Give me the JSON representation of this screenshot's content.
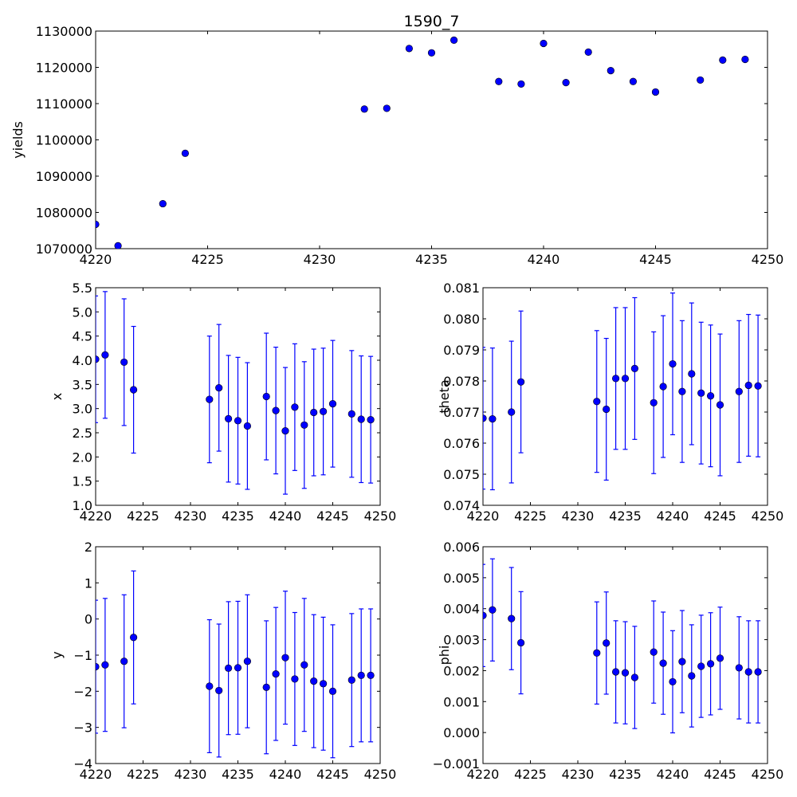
{
  "chart_data": [
    {
      "id": "yields",
      "type": "scatter",
      "title": "1590_7",
      "xlabel": "",
      "ylabel": "yields",
      "xlim": [
        4220,
        4250
      ],
      "ylim": [
        1070000,
        1130000
      ],
      "xticks": [
        "4220",
        "4225",
        "4230",
        "4235",
        "4240",
        "4245",
        "4250"
      ],
      "yticks": [
        "1070000",
        "1080000",
        "1090000",
        "1100000",
        "1110000",
        "1120000",
        "1130000"
      ],
      "marker_color": "#0000ff",
      "x": [
        4220,
        4221,
        4223,
        4224,
        4232,
        4233,
        4234,
        4235,
        4236,
        4238,
        4239,
        4240,
        4241,
        4242,
        4243,
        4244,
        4245,
        4247,
        4248,
        4249
      ],
      "y": [
        1076700,
        1070800,
        1082400,
        1096300,
        1108500,
        1108700,
        1125200,
        1124000,
        1127500,
        1116100,
        1115400,
        1126600,
        1115800,
        1124200,
        1119100,
        1116100,
        1113200,
        1116500,
        1122000,
        1122200
      ]
    },
    {
      "id": "x",
      "type": "scatter",
      "title": "",
      "xlabel": "",
      "ylabel": "x",
      "xlim": [
        4220,
        4250
      ],
      "ylim": [
        1.0,
        5.5
      ],
      "xticks": [
        "4220",
        "4225",
        "4230",
        "4235",
        "4240",
        "4245",
        "4250"
      ],
      "yticks": [
        "1.0",
        "1.5",
        "2.0",
        "2.5",
        "3.0",
        "3.5",
        "4.0",
        "4.5",
        "5.0",
        "5.5"
      ],
      "marker_color": "#0000ff",
      "x": [
        4220,
        4221,
        4223,
        4224,
        4232,
        4233,
        4234,
        4235,
        4236,
        4238,
        4239,
        4240,
        4241,
        4242,
        4243,
        4244,
        4245,
        4247,
        4248,
        4249
      ],
      "y": [
        4.02,
        4.11,
        3.96,
        3.39,
        3.19,
        3.43,
        2.79,
        2.75,
        2.64,
        3.25,
        2.96,
        2.54,
        3.03,
        2.66,
        2.92,
        2.94,
        3.1,
        2.89,
        2.78,
        2.77
      ],
      "yerr": [
        1.31,
        1.31,
        1.31,
        1.31,
        1.31,
        1.31,
        1.31,
        1.31,
        1.31,
        1.31,
        1.31,
        1.31,
        1.31,
        1.31,
        1.31,
        1.31,
        1.31,
        1.31,
        1.31,
        1.31
      ]
    },
    {
      "id": "theta",
      "type": "scatter",
      "title": "",
      "xlabel": "",
      "ylabel": "theta",
      "xlim": [
        4220,
        4250
      ],
      "ylim": [
        0.074,
        0.081
      ],
      "xticks": [
        "4220",
        "4225",
        "4230",
        "4235",
        "4240",
        "4245",
        "4250"
      ],
      "yticks": [
        "0.074",
        "0.075",
        "0.076",
        "0.077",
        "0.078",
        "0.079",
        "0.080",
        "0.081"
      ],
      "marker_color": "#0000ff",
      "x": [
        4220,
        4221,
        4223,
        4224,
        4232,
        4233,
        4234,
        4235,
        4236,
        4238,
        4239,
        4240,
        4241,
        4242,
        4243,
        4244,
        4245,
        4247,
        4248,
        4249
      ],
      "y": [
        0.0768,
        0.07678,
        0.077,
        0.07797,
        0.07734,
        0.07709,
        0.07808,
        0.07808,
        0.0784,
        0.0773,
        0.07782,
        0.07855,
        0.07766,
        0.07823,
        0.07761,
        0.07752,
        0.07723,
        0.07766,
        0.07786,
        0.07784
      ],
      "yerr": [
        0.00228,
        0.00228,
        0.00228,
        0.00228,
        0.00228,
        0.00228,
        0.00228,
        0.00228,
        0.00228,
        0.00228,
        0.00228,
        0.00228,
        0.00228,
        0.00228,
        0.00228,
        0.00228,
        0.00228,
        0.00228,
        0.00228,
        0.00228
      ]
    },
    {
      "id": "y",
      "type": "scatter",
      "title": "",
      "xlabel": "",
      "ylabel": "y",
      "xlim": [
        4220,
        4250
      ],
      "ylim": [
        -4,
        2
      ],
      "xticks": [
        "4220",
        "4225",
        "4230",
        "4235",
        "4240",
        "4245",
        "4250"
      ],
      "yticks": [
        "−4",
        "−3",
        "−2",
        "−1",
        "0",
        "1",
        "2"
      ],
      "marker_color": "#0000ff",
      "x": [
        4220,
        4221,
        4223,
        4224,
        4232,
        4233,
        4234,
        4235,
        4236,
        4238,
        4239,
        4240,
        4241,
        4242,
        4243,
        4244,
        4245,
        4247,
        4248,
        4249
      ],
      "y": [
        -1.32,
        -1.27,
        -1.17,
        -0.51,
        -1.86,
        -1.98,
        -1.36,
        -1.35,
        -1.17,
        -1.89,
        -1.52,
        -1.07,
        -1.66,
        -1.27,
        -1.72,
        -1.79,
        -2.0,
        -1.69,
        -1.56,
        -1.56
      ],
      "yerr": [
        1.84,
        1.84,
        1.84,
        1.84,
        1.84,
        1.84,
        1.84,
        1.84,
        1.84,
        1.84,
        1.84,
        1.84,
        1.84,
        1.84,
        1.84,
        1.84,
        1.84,
        1.84,
        1.84,
        1.84
      ]
    },
    {
      "id": "phi",
      "type": "scatter",
      "title": "",
      "xlabel": "",
      "ylabel": "phi",
      "xlim": [
        4220,
        4250
      ],
      "ylim": [
        -0.001,
        0.006
      ],
      "xticks": [
        "4220",
        "4225",
        "4230",
        "4235",
        "4240",
        "4245",
        "4250"
      ],
      "yticks": [
        "−0.001",
        "0.000",
        "0.001",
        "0.002",
        "0.003",
        "0.004",
        "0.005",
        "0.006"
      ],
      "marker_color": "#0000ff",
      "x": [
        4220,
        4221,
        4223,
        4224,
        4232,
        4233,
        4234,
        4235,
        4236,
        4238,
        4239,
        4240,
        4241,
        4242,
        4243,
        4244,
        4245,
        4247,
        4248,
        4249
      ],
      "y": [
        0.00378,
        0.00396,
        0.00368,
        0.0029,
        0.00257,
        0.00289,
        0.00196,
        0.00193,
        0.00178,
        0.0026,
        0.00224,
        0.00164,
        0.00229,
        0.00183,
        0.00214,
        0.00222,
        0.0024,
        0.00209,
        0.00196,
        0.00196
      ],
      "yerr": [
        0.00165,
        0.00165,
        0.00165,
        0.00165,
        0.00165,
        0.00165,
        0.00165,
        0.00165,
        0.00165,
        0.00165,
        0.00165,
        0.00165,
        0.00165,
        0.00165,
        0.00165,
        0.00165,
        0.00165,
        0.00165,
        0.00165,
        0.00165
      ]
    }
  ]
}
